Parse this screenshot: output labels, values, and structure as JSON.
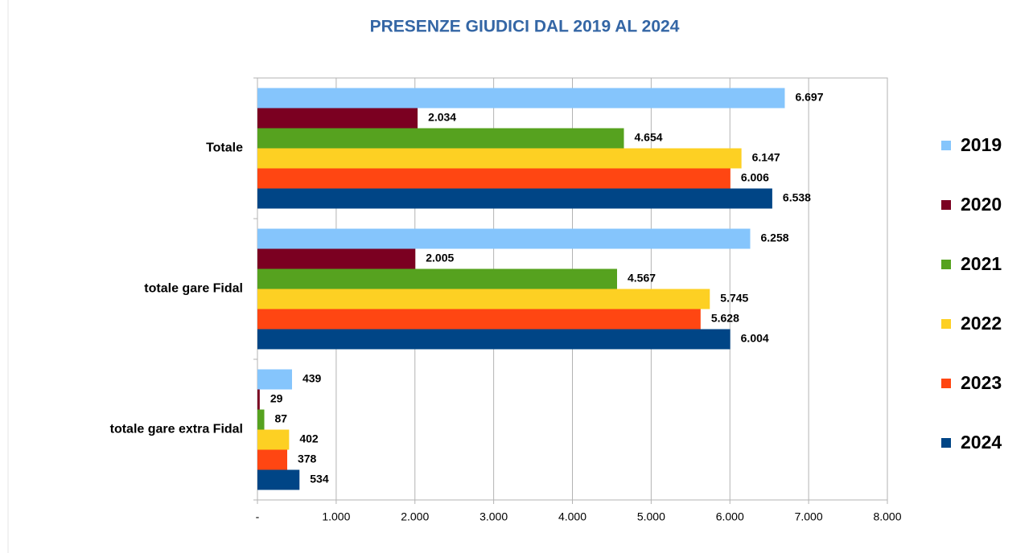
{
  "chart_data": {
    "type": "barh",
    "title": "PRESENZE GIUDICI DAL 2019 AL 2024",
    "categories": [
      "Totale",
      "totale gare Fidal",
      "totale gare extra Fidal"
    ],
    "series": [
      {
        "name": "2019",
        "color": "#85c5fc",
        "values": [
          6697,
          6258,
          439
        ],
        "value_labels": [
          "6.697",
          "6.258",
          "439"
        ]
      },
      {
        "name": "2020",
        "color": "#7b0021",
        "values": [
          2034,
          2005,
          29
        ],
        "value_labels": [
          "2.034",
          "2.005",
          "29"
        ]
      },
      {
        "name": "2021",
        "color": "#56a21f",
        "values": [
          4654,
          4567,
          87
        ],
        "value_labels": [
          "4.654",
          "4.567",
          "87"
        ]
      },
      {
        "name": "2022",
        "color": "#fdd023",
        "values": [
          6147,
          5745,
          402
        ],
        "value_labels": [
          "6.147",
          "5.745",
          "402"
        ]
      },
      {
        "name": "2023",
        "color": "#ff4612",
        "values": [
          6006,
          5628,
          378
        ],
        "value_labels": [
          "6.006",
          "5.628",
          "378"
        ]
      },
      {
        "name": "2024",
        "color": "#004586",
        "values": [
          6538,
          6004,
          534
        ],
        "value_labels": [
          "6.538",
          "6.004",
          "534"
        ]
      }
    ],
    "xlim": [
      0,
      8000
    ],
    "xticks": [
      {
        "value": 0,
        "label": "-"
      },
      {
        "value": 1000,
        "label": "1.000"
      },
      {
        "value": 2000,
        "label": "2.000"
      },
      {
        "value": 3000,
        "label": "3.000"
      },
      {
        "value": 4000,
        "label": "4.000"
      },
      {
        "value": 5000,
        "label": "5.000"
      },
      {
        "value": 6000,
        "label": "6.000"
      },
      {
        "value": 7000,
        "label": "7.000"
      },
      {
        "value": 8000,
        "label": "8.000"
      }
    ],
    "grid": true,
    "legend": "right"
  }
}
